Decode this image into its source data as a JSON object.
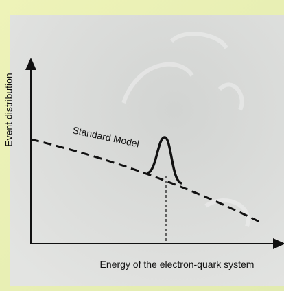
{
  "y_axis_label": "Event distribution",
  "curve_label": "Standard Model",
  "x_axis_label": "Energy of the electron-quark system"
}
